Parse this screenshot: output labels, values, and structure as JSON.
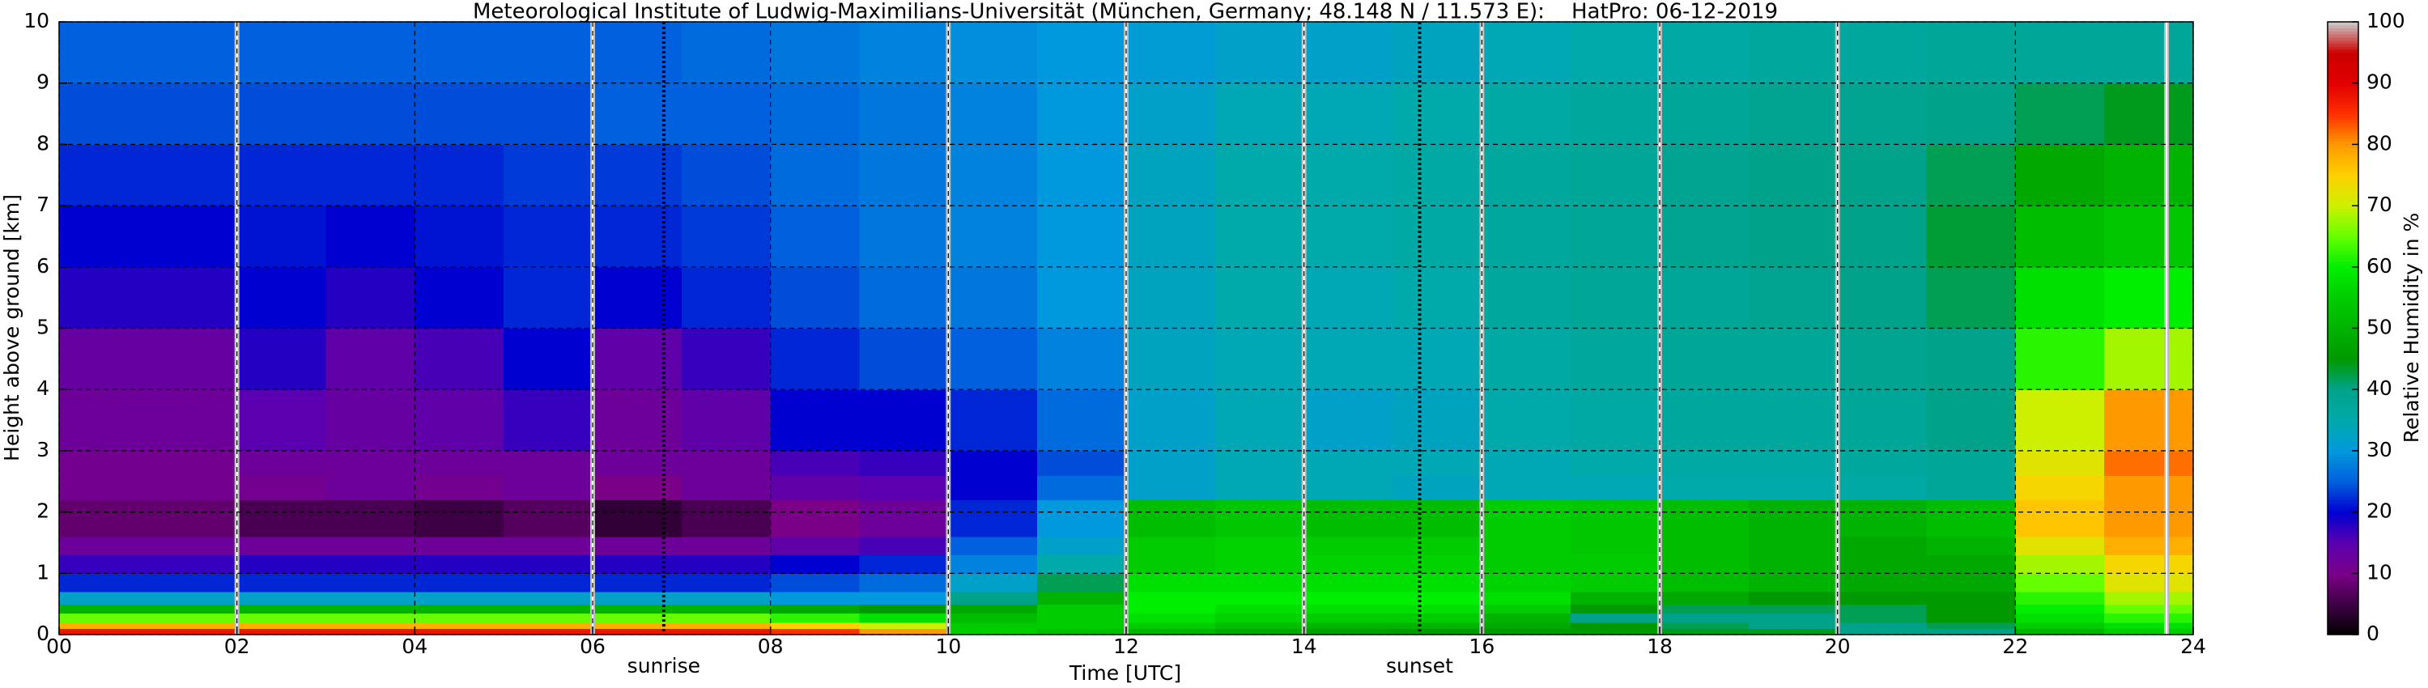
{
  "chart_data": {
    "type": "heatmap",
    "title": "Meteorological Institute of Ludwig-Maximilians-Universität (München, Germany; 48.148 N / 11.573 E):    HatPro: 06-12-2019",
    "x_label": "Time [UTC]",
    "y_label": "Height above ground [km]",
    "colorbar_label": "Relative Humidity in %",
    "xlim": [
      0,
      24
    ],
    "ylim": [
      0,
      10
    ],
    "clim": [
      0,
      100
    ],
    "xticks": [
      {
        "value": 0,
        "label": "00"
      },
      {
        "value": 2,
        "label": "02"
      },
      {
        "value": 4,
        "label": "04"
      },
      {
        "value": 6,
        "label": "06"
      },
      {
        "value": 8,
        "label": "08"
      },
      {
        "value": 10,
        "label": "10"
      },
      {
        "value": 12,
        "label": "12"
      },
      {
        "value": 14,
        "label": "14"
      },
      {
        "value": 16,
        "label": "16"
      },
      {
        "value": 18,
        "label": "18"
      },
      {
        "value": 20,
        "label": "20"
      },
      {
        "value": 22,
        "label": "22"
      },
      {
        "value": 24,
        "label": "24"
      }
    ],
    "yticks": [
      0,
      1,
      2,
      3,
      4,
      5,
      6,
      7,
      8,
      9,
      10
    ],
    "cticks": [
      0,
      10,
      20,
      30,
      40,
      50,
      60,
      70,
      80,
      90,
      100
    ],
    "grid": true,
    "colorscale": [
      [
        0,
        "#000000"
      ],
      [
        10,
        "#7a0088"
      ],
      [
        15,
        "#5a00b0"
      ],
      [
        20,
        "#0000d0"
      ],
      [
        25,
        "#0060dd"
      ],
      [
        30,
        "#0099dd"
      ],
      [
        35,
        "#00aaaa"
      ],
      [
        40,
        "#00a38a"
      ],
      [
        45,
        "#009900"
      ],
      [
        55,
        "#00cc00"
      ],
      [
        60,
        "#00ee00"
      ],
      [
        65,
        "#66ff00"
      ],
      [
        70,
        "#ccf000"
      ],
      [
        75,
        "#ffd000"
      ],
      [
        80,
        "#ff9900"
      ],
      [
        85,
        "#ff3000"
      ],
      [
        90,
        "#e00000"
      ],
      [
        95,
        "#cc0000"
      ],
      [
        100,
        "#cccccc"
      ]
    ],
    "x_edges": [
      0,
      1,
      2,
      3,
      4,
      5,
      6,
      7,
      8,
      9,
      10,
      11,
      12,
      13,
      14,
      15,
      16,
      17,
      18,
      19,
      20,
      21,
      22,
      23,
      24
    ],
    "y_edges": [
      0,
      0.1,
      0.2,
      0.35,
      0.5,
      0.7,
      1,
      1.3,
      1.6,
      2.2,
      2.6,
      3,
      4,
      5,
      6,
      7,
      8,
      9,
      10
    ],
    "values": [
      [
        88,
        88,
        88,
        88,
        88,
        88,
        88,
        88,
        85,
        80,
        55,
        52,
        50,
        48,
        46,
        45,
        45,
        45,
        44,
        44,
        40,
        40,
        50,
        55
      ],
      [
        78,
        78,
        78,
        78,
        78,
        78,
        78,
        78,
        75,
        70,
        55,
        55,
        55,
        52,
        50,
        50,
        48,
        45,
        42,
        40,
        40,
        42,
        55,
        58
      ],
      [
        65,
        65,
        65,
        65,
        65,
        65,
        65,
        65,
        62,
        58,
        52,
        55,
        58,
        56,
        55,
        55,
        50,
        40,
        40,
        40,
        42,
        45,
        58,
        62
      ],
      [
        50,
        50,
        50,
        50,
        50,
        50,
        50,
        50,
        48,
        45,
        48,
        55,
        60,
        58,
        58,
        58,
        55,
        45,
        42,
        42,
        42,
        45,
        60,
        65
      ],
      [
        32,
        32,
        32,
        32,
        32,
        32,
        32,
        32,
        30,
        30,
        40,
        50,
        60,
        60,
        60,
        60,
        58,
        50,
        48,
        45,
        45,
        45,
        62,
        68
      ],
      [
        22,
        22,
        22,
        22,
        22,
        22,
        22,
        22,
        24,
        26,
        32,
        42,
        58,
        58,
        58,
        58,
        56,
        55,
        52,
        50,
        48,
        48,
        65,
        72
      ],
      [
        17,
        17,
        18,
        18,
        18,
        18,
        18,
        18,
        20,
        22,
        28,
        35,
        55,
        56,
        56,
        56,
        55,
        55,
        52,
        50,
        48,
        48,
        68,
        74
      ],
      [
        12,
        12,
        12,
        12,
        12,
        12,
        12,
        12,
        14,
        16,
        25,
        32,
        55,
        56,
        55,
        55,
        55,
        54,
        52,
        50,
        48,
        50,
        72,
        78
      ],
      [
        8,
        8,
        6,
        6,
        5,
        7,
        4,
        6,
        10,
        12,
        22,
        30,
        52,
        54,
        52,
        52,
        55,
        54,
        52,
        50,
        50,
        52,
        76,
        80
      ],
      [
        11,
        11,
        11,
        12,
        11,
        12,
        10,
        12,
        14,
        15,
        20,
        26,
        32,
        34,
        34,
        33,
        34,
        34,
        35,
        35,
        36,
        38,
        74,
        80
      ],
      [
        11,
        11,
        12,
        12,
        12,
        12,
        12,
        12,
        16,
        17,
        20,
        24,
        32,
        34,
        34,
        34,
        34,
        35,
        36,
        36,
        37,
        38,
        72,
        82
      ],
      [
        12,
        12,
        15,
        13,
        14,
        17,
        12,
        14,
        20,
        20,
        22,
        26,
        32,
        34,
        32,
        33,
        35,
        36,
        37,
        37,
        38,
        40,
        70,
        80
      ],
      [
        13,
        13,
        18,
        14,
        16,
        20,
        14,
        17,
        22,
        24,
        25,
        28,
        33,
        34,
        34,
        34,
        36,
        37,
        38,
        38,
        39,
        40,
        62,
        68
      ],
      [
        18,
        18,
        20,
        18,
        20,
        22,
        20,
        22,
        24,
        26,
        27,
        30,
        33,
        35,
        34,
        35,
        37,
        38,
        38,
        39,
        40,
        42,
        58,
        60
      ],
      [
        20,
        20,
        21,
        20,
        21,
        22,
        22,
        23,
        25,
        27,
        28,
        30,
        33,
        35,
        35,
        36,
        37,
        38,
        39,
        40,
        40,
        43,
        52,
        54
      ],
      [
        22,
        22,
        22,
        22,
        22,
        23,
        23,
        24,
        26,
        27,
        28,
        30,
        33,
        35,
        35,
        36,
        37,
        38,
        39,
        40,
        40,
        42,
        48,
        50
      ],
      [
        24,
        24,
        24,
        24,
        24,
        24,
        25,
        25,
        26,
        27,
        28,
        30,
        32,
        34,
        34,
        35,
        36,
        37,
        38,
        39,
        39,
        40,
        42,
        44
      ],
      [
        25,
        25,
        25,
        25,
        25,
        25,
        25,
        26,
        27,
        28,
        29,
        30,
        31,
        32,
        32,
        33,
        34,
        35,
        36,
        37,
        37,
        38,
        38,
        38
      ]
    ],
    "gaps": [
      2,
      6,
      10,
      12,
      14,
      16,
      18,
      20,
      23.7
    ],
    "annotations": [
      {
        "text": "sunrise",
        "x": 6.8
      },
      {
        "text": "sunset",
        "x": 15.3
      }
    ]
  }
}
